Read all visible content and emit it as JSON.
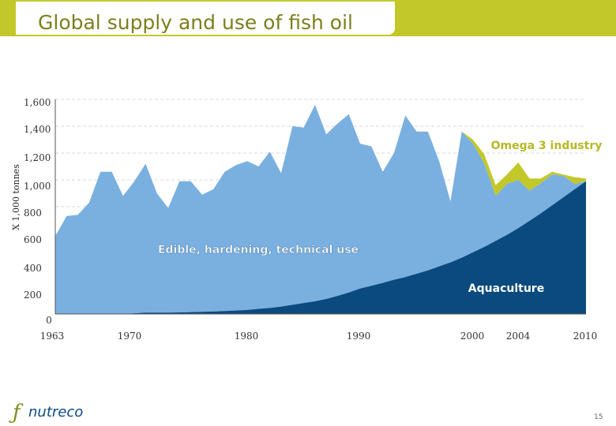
{
  "slide": {
    "title": "Global supply and use of fish oil",
    "logo_text": "nutreco",
    "page_number": "15"
  },
  "colors": {
    "header": "#c3c82a",
    "aquaculture": "#0a4a7e",
    "edible": "#7ab0e0",
    "omega3": "#c3c82a",
    "label_green": "#b4b925",
    "gridline": "#d9d9d9"
  },
  "chart_data": {
    "type": "area",
    "stacked": true,
    "ylabel": "X 1,000 tonnes",
    "xlabel": "",
    "ylim": [
      0,
      1600
    ],
    "yticks": [
      0,
      200,
      400,
      600,
      800,
      1000,
      1200,
      1400,
      1600
    ],
    "ytick_labels": [
      "0",
      "200",
      "400",
      "600",
      "800",
      "1,000",
      "1,200",
      "1,400",
      "1,600"
    ],
    "xticks": [
      1963,
      1970,
      1980,
      1990,
      2000,
      2004,
      2010
    ],
    "xtick_labels": [
      "1963",
      "1970",
      "1980",
      "1990",
      "2000",
      "2004",
      "2010"
    ],
    "grid": true,
    "x": [
      1963,
      1964,
      1965,
      1966,
      1967,
      1968,
      1969,
      1970,
      1971,
      1972,
      1973,
      1974,
      1975,
      1976,
      1977,
      1978,
      1979,
      1980,
      1981,
      1982,
      1983,
      1984,
      1985,
      1986,
      1987,
      1988,
      1989,
      1990,
      1991,
      1992,
      1993,
      1994,
      1995,
      1996,
      1997,
      1998,
      1999,
      2000,
      2001,
      2002,
      2003,
      2004,
      2005,
      2006,
      2007,
      2008,
      2009,
      2010
    ],
    "total": [
      580,
      730,
      740,
      830,
      1060,
      1060,
      880,
      990,
      1120,
      900,
      790,
      990,
      990,
      890,
      930,
      1060,
      1110,
      1140,
      1100,
      1210,
      1050,
      1400,
      1390,
      1560,
      1340,
      1420,
      1490,
      1270,
      1250,
      1060,
      1200,
      1480,
      1360,
      1360,
      1140,
      840,
      1360,
      1300,
      1190,
      960,
      1040,
      1130,
      1010,
      1010,
      1060,
      1040,
      1020,
      1010
    ],
    "series": [
      {
        "name": "Aquaculture",
        "values": [
          0,
          0,
          0,
          0,
          0,
          0,
          0,
          5,
          10,
          10,
          10,
          12,
          14,
          16,
          18,
          22,
          26,
          30,
          38,
          45,
          55,
          68,
          82,
          95,
          112,
          135,
          160,
          190,
          210,
          232,
          255,
          275,
          300,
          325,
          355,
          385,
          420,
          460,
          500,
          545,
          590,
          640,
          695,
          750,
          810,
          870,
          930,
          990
        ]
      },
      {
        "name": "Edible, hardening, technical use",
        "values": [
          580,
          730,
          740,
          830,
          1060,
          1060,
          880,
          985,
          1110,
          890,
          780,
          978,
          976,
          874,
          912,
          1038,
          1084,
          1110,
          1062,
          1165,
          995,
          1332,
          1308,
          1465,
          1228,
          1285,
          1330,
          1080,
          1040,
          828,
          945,
          1205,
          1060,
          1035,
          785,
          455,
          940,
          810,
          620,
          335,
          380,
          360,
          225,
          225,
          230,
          160,
          40,
          0
        ]
      },
      {
        "name": "Omega 3 industry",
        "values": [
          0,
          0,
          0,
          0,
          0,
          0,
          0,
          0,
          0,
          0,
          0,
          0,
          0,
          0,
          0,
          0,
          0,
          0,
          0,
          0,
          0,
          0,
          0,
          0,
          0,
          0,
          0,
          0,
          0,
          0,
          0,
          0,
          0,
          0,
          0,
          0,
          0,
          30,
          70,
          80,
          70,
          130,
          90,
          35,
          20,
          10,
          50,
          20
        ]
      }
    ],
    "annotations": [
      "Omega 3 industry",
      "Edible, hardening, technical use",
      "Aquaculture"
    ]
  }
}
